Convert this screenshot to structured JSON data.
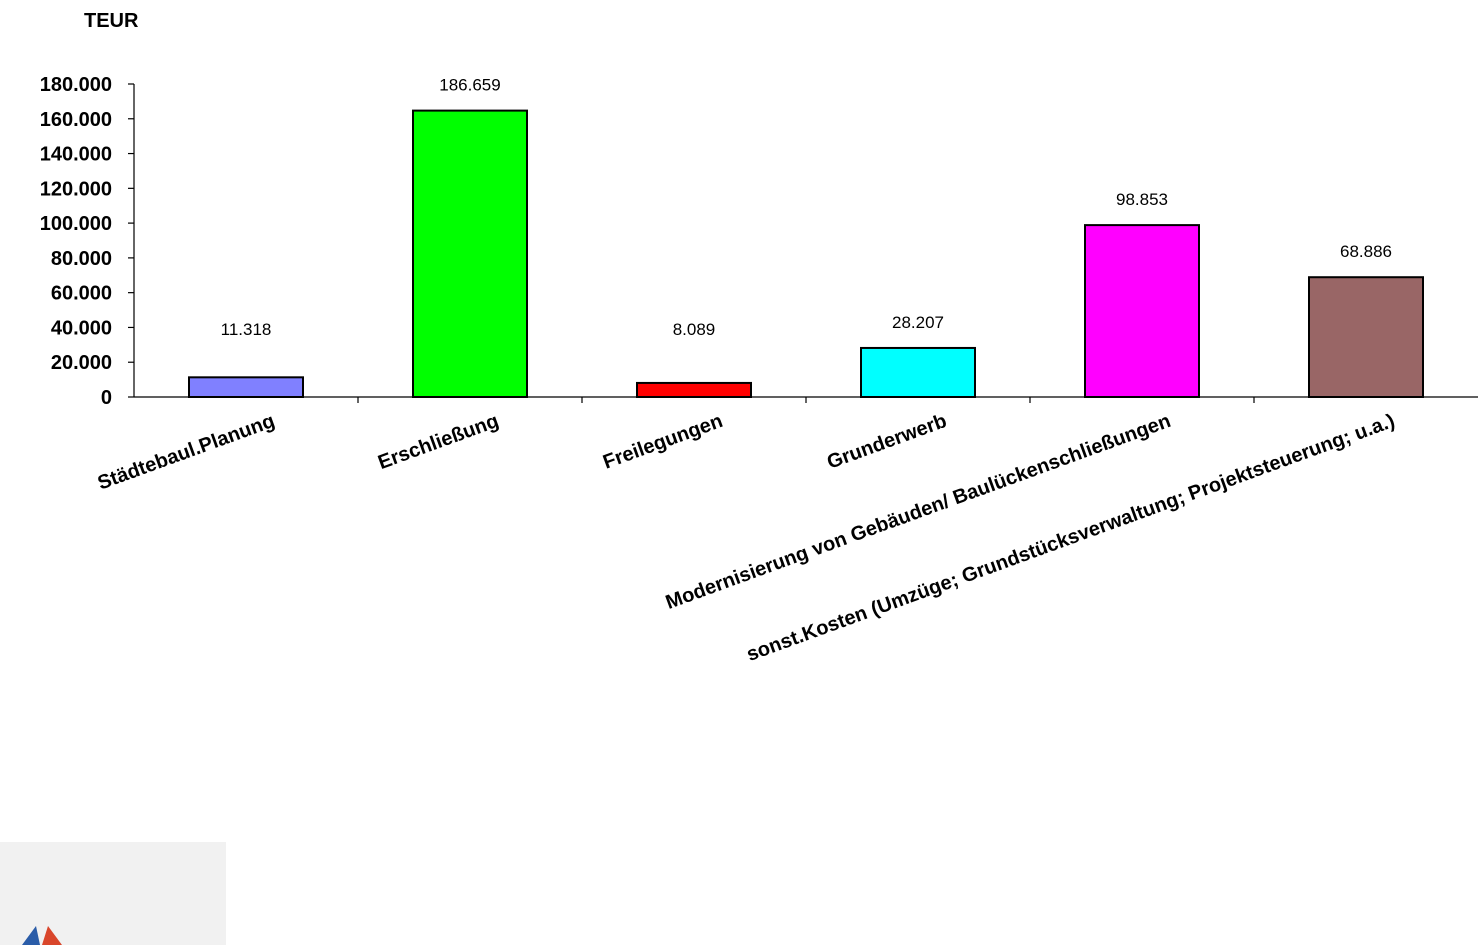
{
  "chart_data": {
    "type": "bar",
    "unit_label": "TEUR",
    "categories": [
      "Städtebaul.Planung",
      "Erschließung",
      "Freilegungen",
      "Grunderwerb",
      "Modernisierung von Gebäuden/ Baulückenschließungen",
      "sonst.Kosten (Umzüge; Grundstücksverwaltung; Projektsteuerung; u.a.)"
    ],
    "values": [
      11318,
      186659,
      8089,
      28207,
      98853,
      68886
    ],
    "value_labels": [
      "11.318",
      "186.659",
      "8.089",
      "28.207",
      "98.853",
      "68.886"
    ],
    "colors": [
      "#8080ff",
      "#00ff00",
      "#ff0000",
      "#00ffff",
      "#ff00ff",
      "#996666"
    ],
    "ylim": [
      0,
      180000
    ],
    "yticks": [
      0,
      20000,
      40000,
      60000,
      80000,
      100000,
      120000,
      140000,
      160000,
      180000
    ],
    "ytick_labels": [
      "0",
      "20.000",
      "40.000",
      "60.000",
      "80.000",
      "100.000",
      "120.000",
      "140.000",
      "160.000",
      "180.000"
    ],
    "grid": false,
    "legend": "none"
  }
}
